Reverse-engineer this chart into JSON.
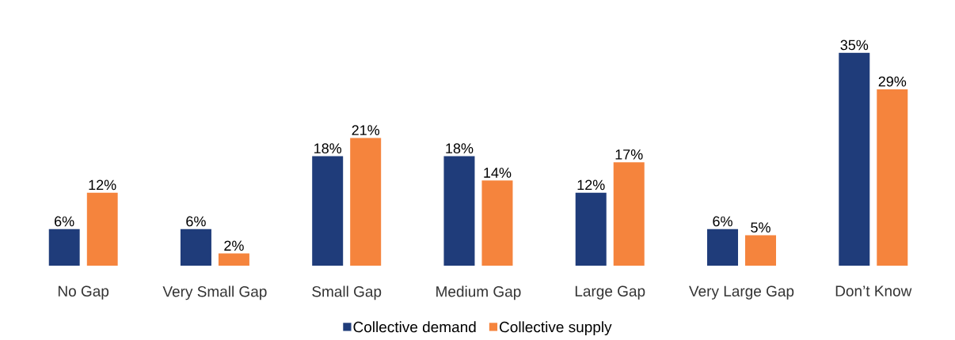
{
  "chart_data": {
    "type": "bar",
    "categories": [
      "No Gap",
      "Very Small Gap",
      "Small Gap",
      "Medium Gap",
      "Large Gap",
      "Very Large Gap",
      "Don’t Know"
    ],
    "series": [
      {
        "name": "Collective demand",
        "color": "#1f3c7a",
        "values": [
          6,
          6,
          18,
          18,
          12,
          6,
          35
        ],
        "value_labels": [
          "6%",
          "6%",
          "18%",
          "18%",
          "12%",
          "6%",
          "35%"
        ]
      },
      {
        "name": "Collective supply",
        "color": "#f5843d",
        "values": [
          12,
          2,
          21,
          14,
          17,
          5,
          29
        ],
        "value_labels": [
          "12%",
          "2%",
          "21%",
          "14%",
          "17%",
          "5%",
          "29%"
        ]
      }
    ],
    "legend": "bottom"
  }
}
